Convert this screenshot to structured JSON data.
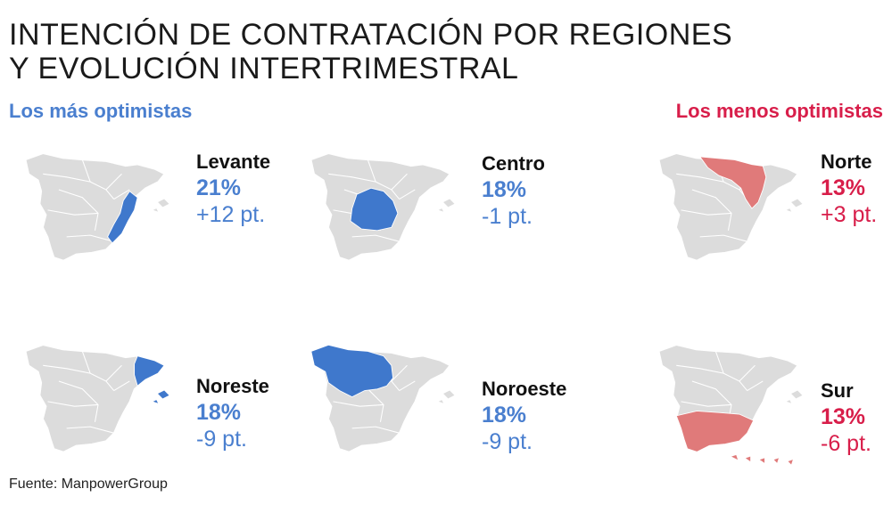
{
  "title_line1": "INTENCIÓN DE CONTRATACIÓN POR REGIONES",
  "title_line2": "Y EVOLUCIÓN INTERTRIMESTRAL",
  "groups": {
    "optimistic_label": "Los más optimistas",
    "pessimistic_label": "Los menos optimistas"
  },
  "colors": {
    "optimistic": "#4a7fcf",
    "pessimistic": "#d81e4a",
    "highlight_optimistic": "#3f78cc",
    "highlight_pessimistic": "#e07a7a",
    "map_base": "#dcdcdc",
    "map_border": "#ffffff"
  },
  "regions": [
    {
      "name": "Levante",
      "pct": "21%",
      "change": "+12 pt.",
      "group": "optimistic"
    },
    {
      "name": "Centro",
      "pct": "18%",
      "change": "-1 pt.",
      "group": "optimistic"
    },
    {
      "name": "Norte",
      "pct": "13%",
      "change": "+3 pt.",
      "group": "pessimistic"
    },
    {
      "name": "Noreste",
      "pct": "18%",
      "change": "-9 pt.",
      "group": "optimistic"
    },
    {
      "name": "Noroeste",
      "pct": "18%",
      "change": "-9 pt.",
      "group": "optimistic"
    },
    {
      "name": "Sur",
      "pct": "13%",
      "change": "-6 pt.",
      "group": "pessimistic"
    }
  ],
  "source": "Fuente: ManpowerGroup"
}
